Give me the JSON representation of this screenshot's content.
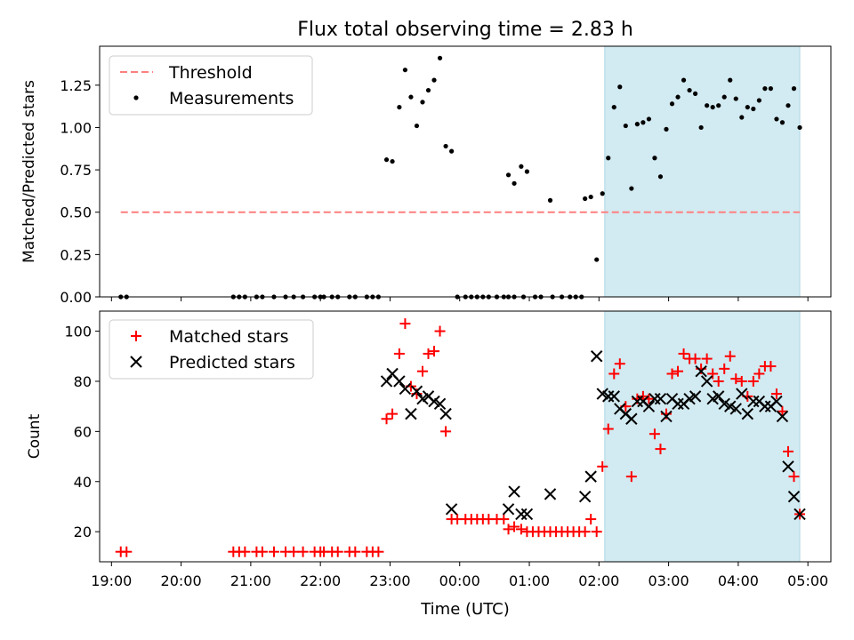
{
  "title": "Flux total observing time = 2.83 h",
  "xlabel": "Time (UTC)",
  "colors": {
    "shade": "#add8e6",
    "threshold": "#ff7f7f",
    "measurement": "#000000",
    "matched": "#ff0000",
    "predicted": "#000000"
  },
  "chart_data": [
    {
      "type": "scatter",
      "ylabel": "Matched/Predicted stars",
      "ylim": [
        0,
        1.48
      ],
      "xlim_hours": [
        18.83,
        29.33
      ],
      "yticks": [
        0.0,
        0.25,
        0.5,
        0.75,
        1.0,
        1.25
      ],
      "ytick_labels": [
        "0.00",
        "0.25",
        "0.50",
        "0.75",
        "1.00",
        "1.25"
      ],
      "shaded_span": [
        "02:05",
        "04:53"
      ],
      "legend": {
        "position": "top-left",
        "threshold_label": "Threshold",
        "measurements_label": "Measurements"
      },
      "threshold": {
        "y": 0.5,
        "x_start": "19:08",
        "x_end": "04:53"
      },
      "series": [
        {
          "name": "Measurements",
          "points": [
            [
              "19:08",
              0
            ],
            [
              "19:13",
              0
            ],
            [
              "20:45",
              0
            ],
            [
              "20:50",
              0
            ],
            [
              "20:55",
              0
            ],
            [
              "21:05",
              0
            ],
            [
              "21:10",
              0
            ],
            [
              "21:20",
              0
            ],
            [
              "21:30",
              0
            ],
            [
              "21:37",
              0
            ],
            [
              "21:45",
              0
            ],
            [
              "21:55",
              0
            ],
            [
              "22:00",
              0
            ],
            [
              "22:03",
              0
            ],
            [
              "22:10",
              0
            ],
            [
              "22:15",
              0
            ],
            [
              "22:25",
              0
            ],
            [
              "22:30",
              0
            ],
            [
              "22:40",
              0
            ],
            [
              "22:45",
              0
            ],
            [
              "22:50",
              0
            ],
            [
              "22:57",
              0.81
            ],
            [
              "23:02",
              0.8
            ],
            [
              "23:08",
              1.12
            ],
            [
              "23:13",
              1.34
            ],
            [
              "23:18",
              1.18
            ],
            [
              "23:23",
              1.01
            ],
            [
              "23:28",
              1.15
            ],
            [
              "23:33",
              1.22
            ],
            [
              "23:38",
              1.28
            ],
            [
              "23:43",
              1.41
            ],
            [
              "23:48",
              0.89
            ],
            [
              "23:53",
              0.86
            ],
            [
              "23:58",
              0
            ],
            [
              "00:05",
              0
            ],
            [
              "00:10",
              0
            ],
            [
              "00:15",
              0
            ],
            [
              "00:20",
              0
            ],
            [
              "00:25",
              0
            ],
            [
              "00:32",
              0
            ],
            [
              "00:38",
              0
            ],
            [
              "00:42",
              0
            ],
            [
              "00:47",
              0
            ],
            [
              "00:55",
              0
            ],
            [
              "01:05",
              0
            ],
            [
              "01:10",
              0
            ],
            [
              "01:20",
              0
            ],
            [
              "01:28",
              0
            ],
            [
              "01:35",
              0
            ],
            [
              "01:40",
              0
            ],
            [
              "01:45",
              0
            ],
            [
              "00:42",
              0.72
            ],
            [
              "00:47",
              0.67
            ],
            [
              "00:53",
              0.77
            ],
            [
              "00:58",
              0.74
            ],
            [
              "01:18",
              0.57
            ],
            [
              "01:48",
              0.58
            ],
            [
              "01:53",
              0.59
            ],
            [
              "01:58",
              0.22
            ],
            [
              "02:03",
              0.61
            ],
            [
              "02:08",
              0.82
            ],
            [
              "02:13",
              1.12
            ],
            [
              "02:18",
              1.24
            ],
            [
              "02:23",
              1.01
            ],
            [
              "02:28",
              0.64
            ],
            [
              "02:33",
              1.02
            ],
            [
              "02:38",
              1.03
            ],
            [
              "02:43",
              1.05
            ],
            [
              "02:48",
              0.82
            ],
            [
              "02:53",
              0.71
            ],
            [
              "02:58",
              0.99
            ],
            [
              "03:03",
              1.14
            ],
            [
              "03:08",
              1.18
            ],
            [
              "03:13",
              1.28
            ],
            [
              "03:18",
              1.22
            ],
            [
              "03:23",
              1.2
            ],
            [
              "03:28",
              1.0
            ],
            [
              "03:33",
              1.13
            ],
            [
              "03:38",
              1.12
            ],
            [
              "03:43",
              1.13
            ],
            [
              "03:48",
              1.18
            ],
            [
              "03:53",
              1.28
            ],
            [
              "03:58",
              1.17
            ],
            [
              "04:03",
              1.06
            ],
            [
              "04:08",
              1.12
            ],
            [
              "04:13",
              1.11
            ],
            [
              "04:18",
              1.16
            ],
            [
              "04:23",
              1.23
            ],
            [
              "04:28",
              1.23
            ],
            [
              "04:33",
              1.05
            ],
            [
              "04:38",
              1.03
            ],
            [
              "04:43",
              1.13
            ],
            [
              "04:48",
              1.23
            ],
            [
              "04:53",
              1.0
            ]
          ]
        }
      ]
    },
    {
      "type": "scatter",
      "ylabel": "Count",
      "ylim": [
        8,
        108
      ],
      "xlim_hours": [
        18.83,
        29.33
      ],
      "yticks": [
        20,
        40,
        60,
        80,
        100
      ],
      "ytick_labels": [
        "20",
        "40",
        "60",
        "80",
        "100"
      ],
      "xtick_labels": [
        "19:00",
        "20:00",
        "21:00",
        "22:00",
        "23:00",
        "00:00",
        "01:00",
        "02:00",
        "03:00",
        "04:00",
        "05:00"
      ],
      "shaded_span": [
        "02:05",
        "04:53"
      ],
      "legend": {
        "position": "top-left",
        "matched_label": "Matched stars",
        "predicted_label": "Predicted stars"
      },
      "series": [
        {
          "name": "Matched stars",
          "points": [
            [
              "19:08",
              12
            ],
            [
              "19:13",
              12
            ],
            [
              "20:45",
              12
            ],
            [
              "20:50",
              12
            ],
            [
              "20:55",
              12
            ],
            [
              "21:05",
              12
            ],
            [
              "21:10",
              12
            ],
            [
              "21:20",
              12
            ],
            [
              "21:30",
              12
            ],
            [
              "21:37",
              12
            ],
            [
              "21:45",
              12
            ],
            [
              "21:55",
              12
            ],
            [
              "22:00",
              12
            ],
            [
              "22:03",
              12
            ],
            [
              "22:10",
              12
            ],
            [
              "22:15",
              12
            ],
            [
              "22:25",
              12
            ],
            [
              "22:30",
              12
            ],
            [
              "22:40",
              12
            ],
            [
              "22:45",
              12
            ],
            [
              "22:50",
              12
            ],
            [
              "22:57",
              65
            ],
            [
              "23:02",
              67
            ],
            [
              "23:08",
              91
            ],
            [
              "23:13",
              103
            ],
            [
              "23:18",
              78
            ],
            [
              "23:23",
              75
            ],
            [
              "23:28",
              84
            ],
            [
              "23:33",
              91
            ],
            [
              "23:38",
              92
            ],
            [
              "23:43",
              100
            ],
            [
              "23:48",
              60
            ],
            [
              "23:53",
              25
            ],
            [
              "23:58",
              25
            ],
            [
              "00:05",
              25
            ],
            [
              "00:10",
              25
            ],
            [
              "00:15",
              25
            ],
            [
              "00:20",
              25
            ],
            [
              "00:25",
              25
            ],
            [
              "00:32",
              25
            ],
            [
              "00:38",
              25
            ],
            [
              "00:42",
              21
            ],
            [
              "00:47",
              22
            ],
            [
              "00:53",
              21
            ],
            [
              "00:58",
              20
            ],
            [
              "01:03",
              20
            ],
            [
              "01:08",
              20
            ],
            [
              "01:13",
              20
            ],
            [
              "01:18",
              20
            ],
            [
              "01:23",
              20
            ],
            [
              "01:28",
              20
            ],
            [
              "01:33",
              20
            ],
            [
              "01:38",
              20
            ],
            [
              "01:43",
              20
            ],
            [
              "01:48",
              20
            ],
            [
              "01:53",
              25
            ],
            [
              "01:58",
              20
            ],
            [
              "02:03",
              46
            ],
            [
              "02:08",
              61
            ],
            [
              "02:13",
              83
            ],
            [
              "02:18",
              87
            ],
            [
              "02:23",
              70
            ],
            [
              "02:28",
              42
            ],
            [
              "02:33",
              73
            ],
            [
              "02:38",
              74
            ],
            [
              "02:43",
              73
            ],
            [
              "02:48",
              59
            ],
            [
              "02:53",
              53
            ],
            [
              "02:58",
              67
            ],
            [
              "03:03",
              83
            ],
            [
              "03:08",
              84
            ],
            [
              "03:13",
              91
            ],
            [
              "03:18",
              89
            ],
            [
              "03:23",
              89
            ],
            [
              "03:28",
              85
            ],
            [
              "03:33",
              89
            ],
            [
              "03:38",
              83
            ],
            [
              "03:43",
              80
            ],
            [
              "03:48",
              85
            ],
            [
              "03:53",
              90
            ],
            [
              "03:58",
              81
            ],
            [
              "04:03",
              80
            ],
            [
              "04:08",
              74
            ],
            [
              "04:13",
              80
            ],
            [
              "04:18",
              83
            ],
            [
              "04:23",
              86
            ],
            [
              "04:28",
              86
            ],
            [
              "04:33",
              75
            ],
            [
              "04:38",
              68
            ],
            [
              "04:43",
              52
            ],
            [
              "04:48",
              42
            ],
            [
              "04:53",
              27
            ]
          ]
        },
        {
          "name": "Predicted stars",
          "points": [
            [
              "22:57",
              80
            ],
            [
              "23:02",
              83
            ],
            [
              "23:08",
              80
            ],
            [
              "23:13",
              77
            ],
            [
              "23:18",
              67
            ],
            [
              "23:23",
              76
            ],
            [
              "23:28",
              73
            ],
            [
              "23:33",
              74
            ],
            [
              "23:38",
              72
            ],
            [
              "23:43",
              71
            ],
            [
              "23:48",
              67
            ],
            [
              "23:53",
              29
            ],
            [
              "00:42",
              29
            ],
            [
              "00:47",
              36
            ],
            [
              "00:53",
              27
            ],
            [
              "00:58",
              27
            ],
            [
              "01:18",
              35
            ],
            [
              "01:48",
              34
            ],
            [
              "01:53",
              42
            ],
            [
              "01:58",
              90
            ],
            [
              "02:03",
              75
            ],
            [
              "02:08",
              74
            ],
            [
              "02:13",
              74
            ],
            [
              "02:18",
              69
            ],
            [
              "02:23",
              67
            ],
            [
              "02:28",
              65
            ],
            [
              "02:33",
              72
            ],
            [
              "02:38",
              72
            ],
            [
              "02:43",
              70
            ],
            [
              "02:48",
              73
            ],
            [
              "02:53",
              73
            ],
            [
              "02:58",
              66
            ],
            [
              "03:03",
              73
            ],
            [
              "03:08",
              71
            ],
            [
              "03:13",
              71
            ],
            [
              "03:18",
              73
            ],
            [
              "03:23",
              74
            ],
            [
              "03:28",
              84
            ],
            [
              "03:33",
              80
            ],
            [
              "03:38",
              73
            ],
            [
              "03:43",
              74
            ],
            [
              "03:48",
              71
            ],
            [
              "03:53",
              70
            ],
            [
              "03:58",
              69
            ],
            [
              "04:03",
              75
            ],
            [
              "04:08",
              67
            ],
            [
              "04:13",
              72
            ],
            [
              "04:18",
              72
            ],
            [
              "04:23",
              70
            ],
            [
              "04:28",
              70
            ],
            [
              "04:33",
              72
            ],
            [
              "04:38",
              66
            ],
            [
              "04:43",
              46
            ],
            [
              "04:48",
              34
            ],
            [
              "04:53",
              27
            ]
          ]
        }
      ]
    }
  ]
}
